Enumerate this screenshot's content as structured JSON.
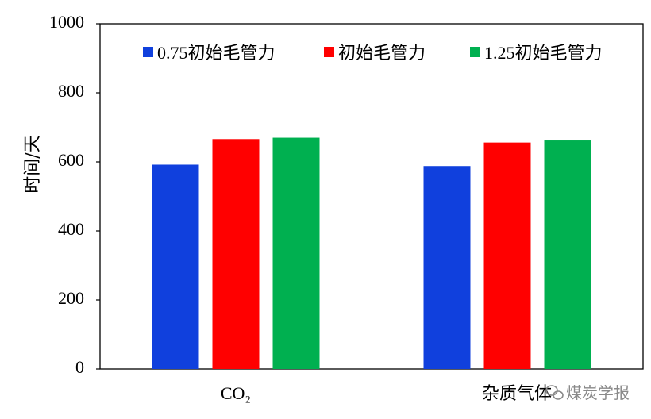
{
  "chart_data": {
    "type": "bar",
    "categories": [
      "CO₂",
      "杂质气体"
    ],
    "series": [
      {
        "name": "0.75初始毛管力",
        "values": [
          592,
          588
        ],
        "color": "#1040dd"
      },
      {
        "name": "初始毛管力",
        "values": [
          666,
          656
        ],
        "color": "#ff0000"
      },
      {
        "name": "1.25初始毛管力",
        "values": [
          670,
          662
        ],
        "color": "#00b050"
      }
    ],
    "title": "",
    "xlabel": "",
    "ylabel": "时间/天",
    "ylim": [
      0,
      1000
    ],
    "yticks": [
      0,
      200,
      400,
      600,
      800,
      1000
    ],
    "grid": false,
    "legend_position": "top"
  },
  "watermark": {
    "text": "煤炭学报",
    "icon": "wechat-icon"
  }
}
